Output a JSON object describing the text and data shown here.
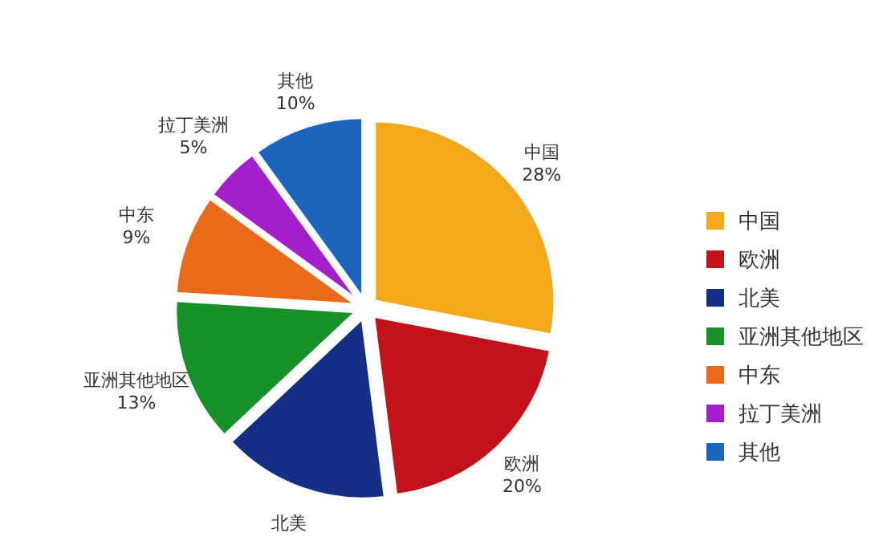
{
  "chart_data": {
    "type": "pie",
    "categories": [
      "中国",
      "欧洲",
      "北美",
      "亚洲其他地区",
      "中东",
      "拉丁美洲",
      "其他"
    ],
    "values": [
      28,
      20,
      15,
      13,
      9,
      5,
      10
    ],
    "colors": [
      "#f2a91a",
      "#c4121a",
      "#142f85",
      "#17922a",
      "#ea6a1a",
      "#a41fcc",
      "#1d64bd"
    ],
    "value_labels": [
      "28%",
      "20%",
      null,
      "13%",
      "9%",
      "5%",
      "10%"
    ],
    "legend": "right"
  }
}
